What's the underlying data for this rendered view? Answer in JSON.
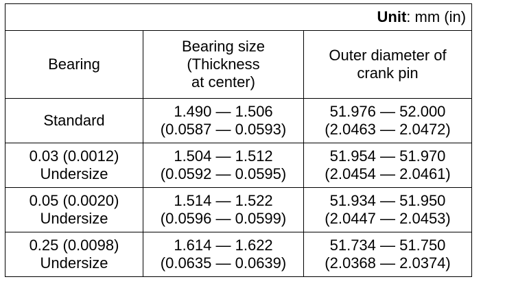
{
  "unit": {
    "label": "Unit",
    "value": ": mm (in)"
  },
  "columns": [
    {
      "lines": [
        "Bearing"
      ]
    },
    {
      "lines": [
        "Bearing size",
        "(Thickness",
        "at center)"
      ]
    },
    {
      "lines": [
        "Outer diameter of",
        "crank pin"
      ]
    }
  ],
  "rows": [
    {
      "bearing": [
        "Standard"
      ],
      "thickness": [
        "1.490 — 1.506",
        "(0.0587 — 0.0593)"
      ],
      "crank_pin": [
        "51.976 — 52.000",
        "(2.0463 — 2.0472)"
      ]
    },
    {
      "bearing": [
        "0.03 (0.0012)",
        "Undersize"
      ],
      "thickness": [
        "1.504 — 1.512",
        "(0.0592 — 0.0595)"
      ],
      "crank_pin": [
        "51.954 — 51.970",
        "(2.0454 — 2.0461)"
      ]
    },
    {
      "bearing": [
        "0.05 (0.0020)",
        "Undersize"
      ],
      "thickness": [
        "1.514 — 1.522",
        "(0.0596 — 0.0599)"
      ],
      "crank_pin": [
        "51.934 — 51.950",
        "(2.0447 — 2.0453)"
      ]
    },
    {
      "bearing": [
        "0.25 (0.0098)",
        "Undersize"
      ],
      "thickness": [
        "1.614 — 1.622",
        "(0.0635 — 0.0639)"
      ],
      "crank_pin": [
        "51.734 — 51.750",
        "(2.0368 — 2.0374)"
      ]
    }
  ]
}
